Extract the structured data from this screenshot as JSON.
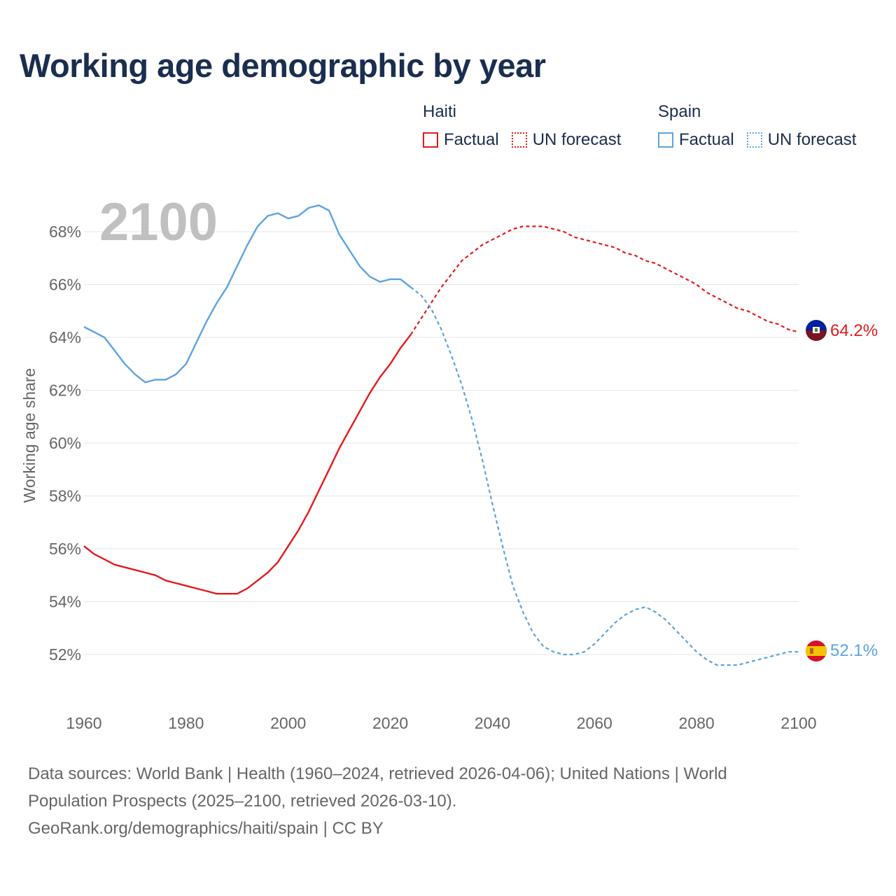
{
  "title": "Working age demographic by year",
  "year_display": "2100",
  "legend": [
    {
      "country": "Haiti",
      "factual_label": "Factual",
      "forecast_label": "UN forecast",
      "color": "#e31a1c"
    },
    {
      "country": "Spain",
      "factual_label": "Factual",
      "forecast_label": "UN forecast",
      "color": "#5ba3e0"
    }
  ],
  "footer": {
    "line1": "Data sources: World Bank | Health (1960–2024, retrieved 2026-04-06); United Nations | World",
    "line2": "Population Prospects (2025–2100, retrieved 2026-03-10).",
    "line3": "GeoRank.org/demographics/haiti/spain | CC BY"
  },
  "chart_data": {
    "type": "line",
    "title": "Working age demographic by year",
    "xlabel": "",
    "ylabel": "Working age share",
    "xlim": [
      1960,
      2100
    ],
    "ylim": [
      50.5,
      69.5
    ],
    "x_ticks": [
      1960,
      1980,
      2000,
      2020,
      2040,
      2060,
      2080,
      2100
    ],
    "y_ticks": [
      52,
      54,
      56,
      58,
      60,
      62,
      64,
      66,
      68
    ],
    "y_tick_labels": [
      "52%",
      "54%",
      "56%",
      "58%",
      "60%",
      "62%",
      "64%",
      "66%",
      "68%"
    ],
    "grid": true,
    "series": [
      {
        "name": "Haiti",
        "color": "#e31a1c",
        "end_label": "64.2%",
        "factual": {
          "x": [
            1960,
            1962,
            1964,
            1966,
            1968,
            1970,
            1972,
            1974,
            1976,
            1978,
            1980,
            1982,
            1984,
            1986,
            1988,
            1990,
            1992,
            1994,
            1996,
            1998,
            2000,
            2002,
            2004,
            2006,
            2008,
            2010,
            2012,
            2014,
            2016,
            2018,
            2020,
            2022,
            2024
          ],
          "y": [
            56.1,
            55.8,
            55.6,
            55.4,
            55.3,
            55.2,
            55.1,
            55.0,
            54.8,
            54.7,
            54.6,
            54.5,
            54.4,
            54.3,
            54.3,
            54.3,
            54.5,
            54.8,
            55.1,
            55.5,
            56.1,
            56.7,
            57.4,
            58.2,
            59.0,
            59.8,
            60.5,
            61.2,
            61.9,
            62.5,
            63.0,
            63.6,
            64.1
          ]
        },
        "forecast": {
          "x": [
            2024,
            2026,
            2028,
            2030,
            2032,
            2034,
            2036,
            2038,
            2040,
            2042,
            2044,
            2046,
            2048,
            2050,
            2052,
            2054,
            2056,
            2058,
            2060,
            2062,
            2064,
            2066,
            2068,
            2070,
            2072,
            2074,
            2076,
            2078,
            2080,
            2082,
            2084,
            2086,
            2088,
            2090,
            2092,
            2094,
            2096,
            2098,
            2100
          ],
          "y": [
            64.1,
            64.7,
            65.3,
            65.9,
            66.4,
            66.9,
            67.2,
            67.5,
            67.7,
            67.9,
            68.1,
            68.2,
            68.2,
            68.2,
            68.1,
            68.0,
            67.8,
            67.7,
            67.6,
            67.5,
            67.4,
            67.2,
            67.1,
            66.9,
            66.8,
            66.6,
            66.4,
            66.2,
            66.0,
            65.7,
            65.5,
            65.3,
            65.1,
            65.0,
            64.8,
            64.6,
            64.5,
            64.3,
            64.2
          ]
        }
      },
      {
        "name": "Spain",
        "color": "#5ba3e0",
        "end_label": "52.1%",
        "factual": {
          "x": [
            1960,
            1962,
            1964,
            1966,
            1968,
            1970,
            1972,
            1974,
            1976,
            1978,
            1980,
            1982,
            1984,
            1986,
            1988,
            1990,
            1992,
            1994,
            1996,
            1998,
            2000,
            2002,
            2004,
            2006,
            2008,
            2010,
            2012,
            2014,
            2016,
            2018,
            2020,
            2022,
            2024
          ],
          "y": [
            64.4,
            64.2,
            64.0,
            63.5,
            63.0,
            62.6,
            62.3,
            62.4,
            62.4,
            62.6,
            63.0,
            63.8,
            64.6,
            65.3,
            65.9,
            66.7,
            67.5,
            68.2,
            68.6,
            68.7,
            68.5,
            68.6,
            68.9,
            69.0,
            68.8,
            67.9,
            67.3,
            66.7,
            66.3,
            66.1,
            66.2,
            66.2,
            65.9
          ]
        },
        "forecast": {
          "x": [
            2024,
            2026,
            2028,
            2030,
            2032,
            2034,
            2036,
            2038,
            2040,
            2042,
            2044,
            2046,
            2048,
            2050,
            2052,
            2054,
            2056,
            2058,
            2060,
            2062,
            2064,
            2066,
            2068,
            2070,
            2072,
            2074,
            2076,
            2078,
            2080,
            2082,
            2084,
            2086,
            2088,
            2090,
            2092,
            2094,
            2096,
            2098,
            2100
          ],
          "y": [
            65.9,
            65.6,
            65.1,
            64.3,
            63.3,
            62.2,
            60.9,
            59.4,
            57.7,
            56.1,
            54.6,
            53.6,
            52.8,
            52.3,
            52.1,
            52.0,
            52.0,
            52.1,
            52.4,
            52.8,
            53.2,
            53.5,
            53.7,
            53.8,
            53.6,
            53.3,
            52.9,
            52.5,
            52.1,
            51.8,
            51.6,
            51.6,
            51.6,
            51.7,
            51.8,
            51.9,
            52.0,
            52.1,
            52.1
          ]
        }
      }
    ]
  }
}
